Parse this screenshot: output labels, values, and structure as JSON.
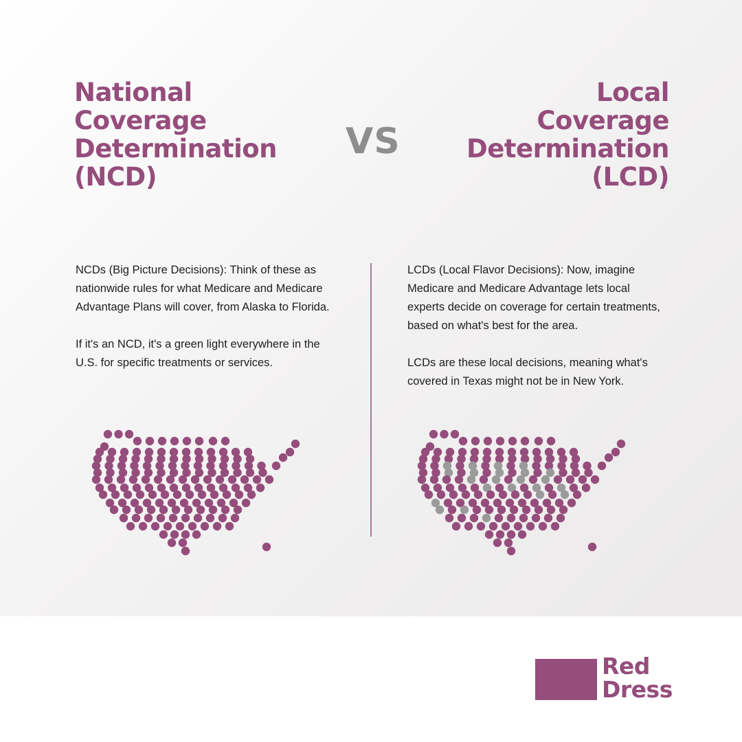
{
  "colors": {
    "accent": "#954d7c",
    "vs_gray": "#8d8d8f",
    "dot_purple": "#954d7c",
    "dot_gray": "#9a9a9b",
    "body_text": "#1e1e1e"
  },
  "ncd": {
    "title_lines": [
      "National",
      "Coverage",
      "Determination",
      "(NCD)"
    ],
    "paragraphs": [
      "NCDs (Big Picture Decisions): Think of these as nationwide rules for what Medicare and Medicare Advantage Plans will cover, from Alaska to Florida.",
      "If it's an NCD, it's a green light everywhere in the U.S. for specific treatments or services."
    ]
  },
  "vs_label": "VS",
  "lcd": {
    "title_lines": [
      "Local",
      "Coverage",
      "Determination",
      "(LCD)"
    ],
    "paragraphs": [
      "LCDs (Local Flavor Decisions): Now, imagine Medicare and Medicare Advantage lets local experts decide on coverage for certain treatments, based on what's best for the area.",
      "LCDs are these local decisions, meaning what's covered in Texas might not be in New York."
    ]
  },
  "logo": {
    "lines": [
      "Red",
      "Dress"
    ]
  }
}
